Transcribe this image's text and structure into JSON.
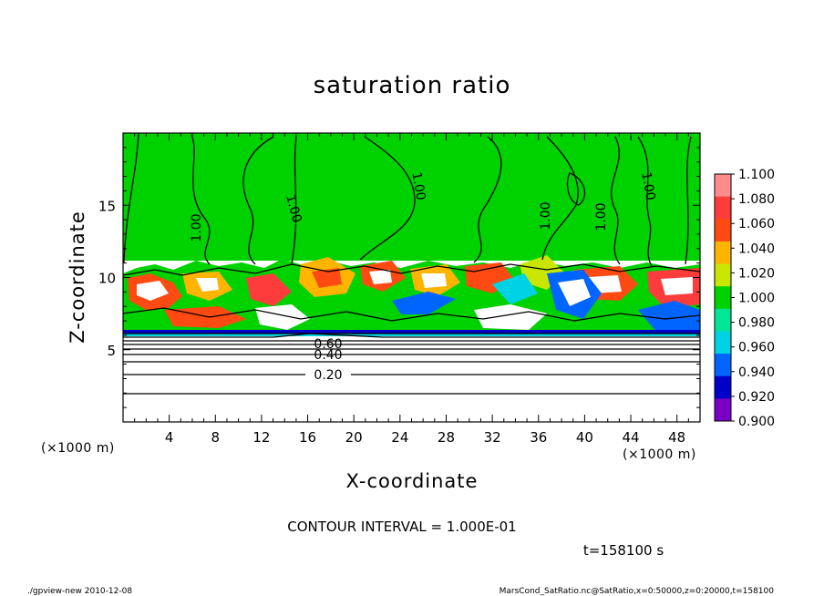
{
  "chart_data": {
    "type": "heatmap",
    "title": "saturation ratio",
    "xlabel": "X-coordinate",
    "ylabel": "Z-coordinate",
    "x_unit": "(×1000 m)",
    "y_unit": "(×1000 m)",
    "xlim": [
      0,
      50
    ],
    "ylim": [
      0,
      20
    ],
    "x_ticks": [
      4,
      8,
      12,
      16,
      20,
      24,
      28,
      32,
      36,
      40,
      44,
      48
    ],
    "y_ticks": [
      5,
      10,
      15
    ],
    "colorbar": {
      "levels": [
        1.1,
        1.08,
        1.06,
        1.04,
        1.02,
        1.0,
        0.98,
        0.96,
        0.94,
        0.92,
        0.9
      ],
      "labels": [
        "1.100",
        "1.080",
        "1.060",
        "1.040",
        "1.020",
        "1.000",
        "0.980",
        "0.960",
        "0.940",
        "0.920",
        "0.900"
      ],
      "colors": [
        "#ff8c8c",
        "#ff3c3c",
        "#ff4a14",
        "#ffb400",
        "#c8e600",
        "#00d200",
        "#00e696",
        "#00d2e6",
        "#0064ff",
        "#0000c8",
        "#7a00c8"
      ]
    },
    "contour_labels": [
      "1.00",
      "1.00",
      "1.00",
      "1.00",
      "1.00",
      "1.00",
      "0.60",
      "0.40",
      "0.20"
    ],
    "contour_interval": "CONTOUR INTERVAL = 1.000E-01",
    "time": "t=158100 s"
  },
  "footer": {
    "left": "./gpview-new  2010-12-08",
    "right": "MarsCond_SatRatio.nc@SatRatio,x=0:50000,z=0:20000,t=158100"
  }
}
